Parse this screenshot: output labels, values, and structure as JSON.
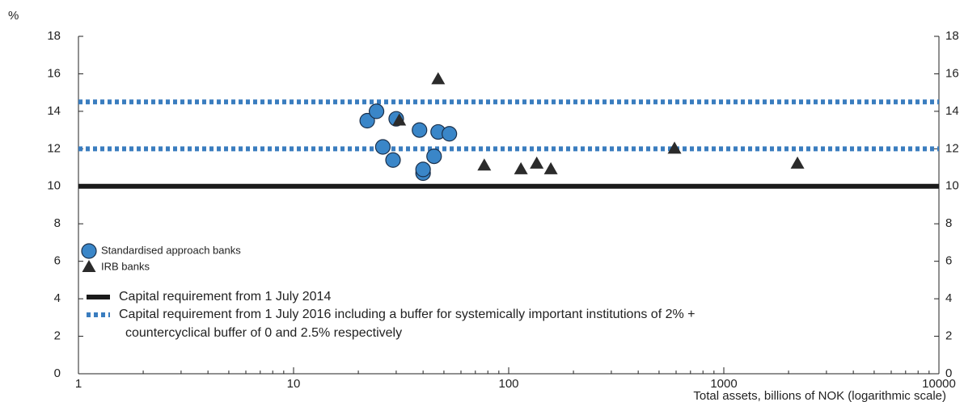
{
  "chart_data": {
    "type": "scatter",
    "y_unit": "%",
    "xlabel": "Total assets, billions of NOK (logarithmic scale)",
    "xscale": "log",
    "xlim": [
      1,
      10000
    ],
    "xticks": [
      1,
      10,
      100,
      1000,
      10000
    ],
    "xminorticks": [
      2,
      3,
      4,
      5,
      6,
      7,
      8,
      9,
      20,
      30,
      40,
      50,
      60,
      70,
      80,
      90,
      200,
      300,
      400,
      500,
      600,
      700,
      800,
      900,
      2000,
      3000,
      4000,
      5000,
      6000,
      7000,
      8000,
      9000
    ],
    "ylim": [
      0,
      18
    ],
    "yticks": [
      0,
      2,
      4,
      6,
      8,
      10,
      12,
      14,
      16,
      18
    ],
    "y2lim": [
      0,
      18
    ],
    "y2ticks": [
      0,
      2,
      4,
      6,
      8,
      10,
      12,
      14,
      16,
      18
    ],
    "grid": false,
    "legend": "lower left",
    "series": [
      {
        "name": "Standardised approach banks",
        "marker": "circle",
        "color": "#3a86c8",
        "x": [
          22,
          24.3,
          26,
          29,
          30,
          38.5,
          40,
          40,
          45,
          47,
          53
        ],
        "values": [
          13.5,
          14.0,
          12.1,
          11.4,
          13.6,
          13.0,
          10.7,
          10.9,
          11.6,
          12.9,
          12.8
        ]
      },
      {
        "name": "IRB banks",
        "marker": "triangle",
        "color": "#2b2b2b",
        "x": [
          31,
          47,
          77,
          114,
          135,
          157,
          590,
          2200
        ],
        "values": [
          13.5,
          15.7,
          11.1,
          10.9,
          11.2,
          10.9,
          12.0,
          11.2
        ]
      }
    ],
    "hlines": [
      {
        "name": "Capital requirement from 1 July 2014",
        "color": "#1a1a1a",
        "dashed": false,
        "values": [
          10
        ]
      },
      {
        "name": "Capital requirement from 1 July 2016 including a buffer for systemically important institutions of 2% + countercyclical buffer of 0 and 2.5% respectively",
        "color": "#3a7dbf",
        "dashed": true,
        "values": [
          12,
          14.5
        ]
      }
    ]
  }
}
